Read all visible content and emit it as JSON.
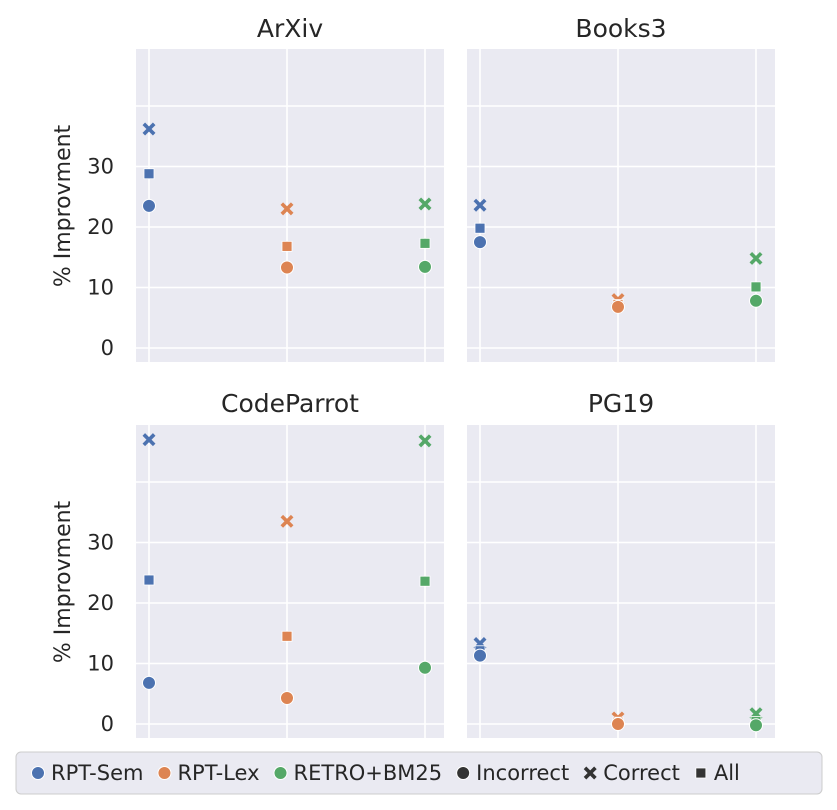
{
  "chart_data": {
    "type": "scatter",
    "ylabel": "% Improvment",
    "yticks": [
      0,
      10,
      20,
      30
    ],
    "ylim": [
      -2,
      50
    ],
    "x_categories": [
      "RPT-Sem",
      "RPT-Lex",
      "RETRO+BM25"
    ],
    "grid": true,
    "legend": {
      "position": "bottom",
      "methods": [
        {
          "name": "RPT-Sem",
          "color": "#4c72b0"
        },
        {
          "name": "RPT-Lex",
          "color": "#dd8452"
        },
        {
          "name": "RETRO+BM25",
          "color": "#55a868"
        }
      ],
      "subsets": [
        {
          "name": "Incorrect",
          "marker": "circle"
        },
        {
          "name": "Correct",
          "marker": "x"
        },
        {
          "name": "All",
          "marker": "square"
        }
      ],
      "marker_color": "#333333"
    },
    "panels": [
      {
        "title": "ArXiv",
        "points": [
          {
            "method": "RPT-Sem",
            "subset": "Correct",
            "value": 36.2
          },
          {
            "method": "RPT-Sem",
            "subset": "All",
            "value": 28.8
          },
          {
            "method": "RPT-Sem",
            "subset": "Incorrect",
            "value": 23.5
          },
          {
            "method": "RPT-Lex",
            "subset": "Correct",
            "value": 23.0
          },
          {
            "method": "RPT-Lex",
            "subset": "All",
            "value": 16.8
          },
          {
            "method": "RPT-Lex",
            "subset": "Incorrect",
            "value": 13.3
          },
          {
            "method": "RETRO+BM25",
            "subset": "Correct",
            "value": 23.8
          },
          {
            "method": "RETRO+BM25",
            "subset": "All",
            "value": 17.3
          },
          {
            "method": "RETRO+BM25",
            "subset": "Incorrect",
            "value": 13.4
          }
        ]
      },
      {
        "title": "Books3",
        "points": [
          {
            "method": "RPT-Sem",
            "subset": "Correct",
            "value": 23.6
          },
          {
            "method": "RPT-Sem",
            "subset": "All",
            "value": 19.8
          },
          {
            "method": "RPT-Sem",
            "subset": "Incorrect",
            "value": 17.5
          },
          {
            "method": "RPT-Lex",
            "subset": "Correct",
            "value": 8.0
          },
          {
            "method": "RPT-Lex",
            "subset": "All",
            "value": 7.2
          },
          {
            "method": "RPT-Lex",
            "subset": "Incorrect",
            "value": 6.8
          },
          {
            "method": "RETRO+BM25",
            "subset": "Correct",
            "value": 14.8
          },
          {
            "method": "RETRO+BM25",
            "subset": "All",
            "value": 10.1
          },
          {
            "method": "RETRO+BM25",
            "subset": "Incorrect",
            "value": 7.8
          }
        ]
      },
      {
        "title": "CodeParrot",
        "points": [
          {
            "method": "RPT-Sem",
            "subset": "Correct",
            "value": 47.0
          },
          {
            "method": "RPT-Sem",
            "subset": "All",
            "value": 23.8
          },
          {
            "method": "RPT-Sem",
            "subset": "Incorrect",
            "value": 6.8
          },
          {
            "method": "RPT-Lex",
            "subset": "Correct",
            "value": 33.5
          },
          {
            "method": "RPT-Lex",
            "subset": "All",
            "value": 14.5
          },
          {
            "method": "RPT-Lex",
            "subset": "Incorrect",
            "value": 4.3
          },
          {
            "method": "RETRO+BM25",
            "subset": "Correct",
            "value": 46.8
          },
          {
            "method": "RETRO+BM25",
            "subset": "All",
            "value": 23.6
          },
          {
            "method": "RETRO+BM25",
            "subset": "Incorrect",
            "value": 9.3
          }
        ]
      },
      {
        "title": "PG19",
        "points": [
          {
            "method": "RPT-Sem",
            "subset": "Correct",
            "value": 13.3
          },
          {
            "method": "RPT-Sem",
            "subset": "All",
            "value": 12.1
          },
          {
            "method": "RPT-Sem",
            "subset": "Incorrect",
            "value": 11.3
          },
          {
            "method": "RPT-Lex",
            "subset": "Correct",
            "value": 1.0
          },
          {
            "method": "RPT-Lex",
            "subset": "All",
            "value": 0.3
          },
          {
            "method": "RPT-Lex",
            "subset": "Incorrect",
            "value": 0.0
          },
          {
            "method": "RETRO+BM25",
            "subset": "Correct",
            "value": 1.7
          },
          {
            "method": "RETRO+BM25",
            "subset": "All",
            "value": 0.4
          },
          {
            "method": "RETRO+BM25",
            "subset": "Incorrect",
            "value": -0.2
          }
        ]
      }
    ]
  }
}
